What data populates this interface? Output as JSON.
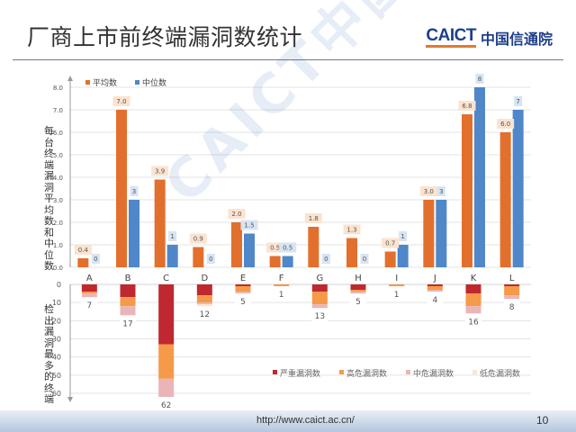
{
  "header": {
    "title": "厂商上市前终端漏洞数统计",
    "logo_en": "CAICT",
    "logo_cn": "中国信通院"
  },
  "footer": {
    "url": "http://www.caict.ac.cn/",
    "page": "10"
  },
  "watermark": "CAICT中国信通院",
  "chart_data": [
    {
      "type": "bar",
      "title": "",
      "xlabel": "",
      "ylabel": "每台终端漏洞平均数和中位数",
      "categories": [
        "A",
        "B",
        "C",
        "D",
        "E",
        "F",
        "G",
        "H",
        "I",
        "J",
        "K",
        "L"
      ],
      "series": [
        {
          "name": "平均数",
          "color": "#e36f2c",
          "values": [
            0.4,
            7.0,
            3.9,
            0.9,
            2.0,
            0.5,
            1.8,
            1.3,
            0.7,
            3.0,
            6.8,
            6.0
          ],
          "labels": [
            "0.4",
            "7.0",
            "3.9",
            "0.9",
            "2.0",
            "0.5",
            "1.8",
            "1.3",
            "0.7",
            "3.0",
            "6.8",
            "6.0"
          ]
        },
        {
          "name": "中位数",
          "color": "#4f87c9",
          "values": [
            0,
            3,
            1,
            0,
            1.5,
            0.5,
            0,
            0,
            1,
            3,
            8,
            7
          ],
          "labels": [
            "0",
            "3",
            "1",
            "0",
            "1.5",
            "0.5",
            "0",
            "0",
            "1",
            "3",
            "8",
            "7"
          ]
        }
      ],
      "ylim": [
        0,
        8
      ],
      "yticks": [
        "0.0",
        "1.0",
        "2.0",
        "3.0",
        "4.0",
        "5.0",
        "6.0",
        "7.0",
        "8.0"
      ],
      "grid": true,
      "legend_position": "top-left"
    },
    {
      "type": "bar",
      "stacked": true,
      "inverted_y": true,
      "title": "",
      "xlabel": "",
      "ylabel": "检出漏洞最多的终端",
      "categories": [
        "A",
        "B",
        "C",
        "D",
        "E",
        "F",
        "G",
        "H",
        "I",
        "J",
        "K",
        "L"
      ],
      "totals": [
        7,
        17,
        62,
        12,
        5,
        1,
        13,
        5,
        1,
        4,
        16,
        8
      ],
      "series": [
        {
          "name": "严重漏洞数",
          "color": "#c0282f",
          "values": [
            4,
            7,
            33,
            6,
            1,
            0,
            4,
            3,
            0,
            1,
            5,
            1
          ]
        },
        {
          "name": "高危漏洞数",
          "color": "#f49a48",
          "values": [
            1,
            5,
            19,
            4,
            3,
            1,
            7,
            1,
            1,
            2,
            7,
            5
          ]
        },
        {
          "name": "中危漏洞数",
          "color": "#eab5b8",
          "values": [
            2,
            5,
            10,
            1,
            1,
            0,
            2,
            1,
            0,
            1,
            4,
            2
          ]
        },
        {
          "name": "低危漏洞数",
          "color": "#fbe6cf",
          "values": [
            0,
            0,
            0,
            1,
            0,
            0,
            0,
            0,
            0,
            0,
            0,
            0
          ]
        }
      ],
      "ylim": [
        0,
        60
      ],
      "yticks": [
        "0",
        "10",
        "20",
        "30",
        "40",
        "50",
        "60"
      ],
      "grid": true,
      "legend_position": "bottom-right"
    }
  ]
}
